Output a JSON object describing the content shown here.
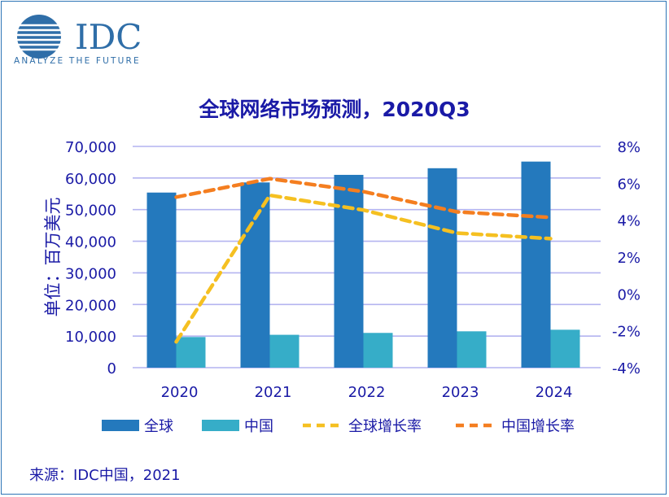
{
  "logo": {
    "text": "IDC",
    "tagline": "ANALYZE THE FUTURE"
  },
  "source": "来源：IDC中国，2021",
  "chart_data": {
    "type": "bar",
    "title": "全球网络市场预测，2020Q3",
    "ylabel": "单位：百万美元",
    "categories": [
      "2020",
      "2021",
      "2022",
      "2023",
      "2024"
    ],
    "ylim": [
      0,
      70000
    ],
    "y2lim": [
      -4,
      8
    ],
    "yticks": [
      "0",
      "10,000",
      "20,000",
      "30,000",
      "40,000",
      "50,000",
      "60,000",
      "70,000"
    ],
    "y2ticks": [
      "-4%",
      "-2%",
      "0%",
      "2%",
      "4%",
      "6%",
      "8%"
    ],
    "grid": true,
    "legend": "bottom",
    "series": [
      {
        "name": "全球",
        "type": "bar",
        "axis": "left",
        "color": "#2479bd",
        "values": [
          55400,
          58600,
          61000,
          63100,
          65200
        ]
      },
      {
        "name": "中国",
        "type": "bar",
        "axis": "left",
        "color": "#36adc8",
        "values": [
          9700,
          10400,
          11000,
          11500,
          12000
        ]
      },
      {
        "name": "全球增长率",
        "type": "line",
        "axis": "right",
        "color": "#f5c021",
        "values": [
          -2.6,
          5.35,
          4.55,
          3.3,
          3.0
        ]
      },
      {
        "name": "中国增长率",
        "type": "line",
        "axis": "right",
        "color": "#f47e20",
        "values": [
          5.25,
          6.25,
          5.55,
          4.45,
          4.15
        ]
      }
    ]
  }
}
